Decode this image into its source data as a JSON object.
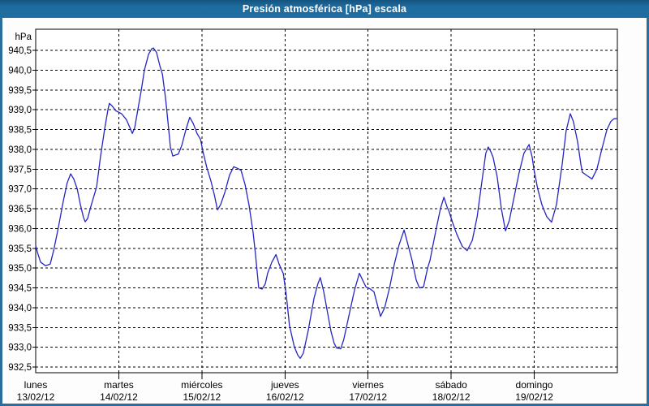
{
  "window": {
    "title": "Presión atmosférica [hPa] escala"
  },
  "colors": {
    "title_bar": "#1e6b9f",
    "title_text": "#ffffff",
    "frame_border": "#2b6d9d",
    "plot_background": "#ffffff",
    "grid": "#000000",
    "axis": "#000000",
    "line": "#2525c4"
  },
  "chart_data": {
    "type": "line",
    "title": "Presión atmosférica [hPa] escala",
    "y_unit_label": "hPa",
    "decimal_separator": ",",
    "grid": "dashed",
    "legend": "none",
    "ylim": [
      932.36,
      941.03
    ],
    "y_ticks": [
      940.5,
      940.0,
      939.5,
      939.0,
      938.5,
      938.0,
      937.5,
      937.0,
      936.5,
      936.0,
      935.5,
      935.0,
      934.5,
      934.0,
      933.5,
      933.0,
      932.5
    ],
    "xlim_hours": [
      0,
      168
    ],
    "hours_per_day": 24,
    "x_day_labels": [
      {
        "weekday": "lunes",
        "date": "13/02/12"
      },
      {
        "weekday": "martes",
        "date": "14/02/12"
      },
      {
        "weekday": "miércoles",
        "date": "15/02/12"
      },
      {
        "weekday": "jueves",
        "date": "16/02/12"
      },
      {
        "weekday": "viernes",
        "date": "17/02/12"
      },
      {
        "weekday": "sábado",
        "date": "18/02/12"
      },
      {
        "weekday": "domingo",
        "date": "19/02/12"
      }
    ],
    "series": [
      {
        "name": "presión atmosférica",
        "color": "#2525c4",
        "points": [
          [
            0,
            935.57
          ],
          [
            0.5,
            935.4
          ],
          [
            1.4,
            935.15
          ],
          [
            2.8,
            935.06
          ],
          [
            4.2,
            935.1
          ],
          [
            5.2,
            935.45
          ],
          [
            6.6,
            936.05
          ],
          [
            8.0,
            936.7
          ],
          [
            9.1,
            937.15
          ],
          [
            10.1,
            937.38
          ],
          [
            11.0,
            937.25
          ],
          [
            12.0,
            937.0
          ],
          [
            12.9,
            936.6
          ],
          [
            13.8,
            936.28
          ],
          [
            14.3,
            936.17
          ],
          [
            15.0,
            936.25
          ],
          [
            15.9,
            936.55
          ],
          [
            17.6,
            937.05
          ],
          [
            18.7,
            937.8
          ],
          [
            19.9,
            938.5
          ],
          [
            20.9,
            939.02
          ],
          [
            21.3,
            939.16
          ],
          [
            22.0,
            939.1
          ],
          [
            23.2,
            938.97
          ],
          [
            24.8,
            938.9
          ],
          [
            26.2,
            938.75
          ],
          [
            27.2,
            938.55
          ],
          [
            27.9,
            938.4
          ],
          [
            28.6,
            938.55
          ],
          [
            29.5,
            939.0
          ],
          [
            30.5,
            939.5
          ],
          [
            31.4,
            940.0
          ],
          [
            32.6,
            940.4
          ],
          [
            33.5,
            940.54
          ],
          [
            34.0,
            940.56
          ],
          [
            34.9,
            940.45
          ],
          [
            35.9,
            940.1
          ],
          [
            36.6,
            939.9
          ],
          [
            37.5,
            939.3
          ],
          [
            38.2,
            938.7
          ],
          [
            38.9,
            938.06
          ],
          [
            39.6,
            937.83
          ],
          [
            40.5,
            937.86
          ],
          [
            41.2,
            937.88
          ],
          [
            42.2,
            938.1
          ],
          [
            43.4,
            938.5
          ],
          [
            44.5,
            938.81
          ],
          [
            45.5,
            938.65
          ],
          [
            46.6,
            938.4
          ],
          [
            47.6,
            938.25
          ],
          [
            48.3,
            937.95
          ],
          [
            49.4,
            937.55
          ],
          [
            50.6,
            937.2
          ],
          [
            51.6,
            936.85
          ],
          [
            52.5,
            936.47
          ],
          [
            53.4,
            936.6
          ],
          [
            54.6,
            936.9
          ],
          [
            56.0,
            937.35
          ],
          [
            57.2,
            937.56
          ],
          [
            58.3,
            937.52
          ],
          [
            59.3,
            937.47
          ],
          [
            60.5,
            937.1
          ],
          [
            61.6,
            936.6
          ],
          [
            62.8,
            935.9
          ],
          [
            63.5,
            935.33
          ],
          [
            64.4,
            934.5
          ],
          [
            65.4,
            934.47
          ],
          [
            66.3,
            934.6
          ],
          [
            67.0,
            934.87
          ],
          [
            68.2,
            935.15
          ],
          [
            69.4,
            935.34
          ],
          [
            70.3,
            935.1
          ],
          [
            71.5,
            934.86
          ],
          [
            72.4,
            934.3
          ],
          [
            73.3,
            933.55
          ],
          [
            74.7,
            933.01
          ],
          [
            75.7,
            932.8
          ],
          [
            76.4,
            932.72
          ],
          [
            77.3,
            932.85
          ],
          [
            78.7,
            933.42
          ],
          [
            80.4,
            934.24
          ],
          [
            81.5,
            934.6
          ],
          [
            82.2,
            934.76
          ],
          [
            83.2,
            934.4
          ],
          [
            84.1,
            933.97
          ],
          [
            85.3,
            933.4
          ],
          [
            86.2,
            933.1
          ],
          [
            86.9,
            932.98
          ],
          [
            88.1,
            932.96
          ],
          [
            89.0,
            933.2
          ],
          [
            90.4,
            933.77
          ],
          [
            92.1,
            934.45
          ],
          [
            93.5,
            934.87
          ],
          [
            94.4,
            934.7
          ],
          [
            95.4,
            934.52
          ],
          [
            96.5,
            934.48
          ],
          [
            97.7,
            934.4
          ],
          [
            98.9,
            934.0
          ],
          [
            99.6,
            933.78
          ],
          [
            100.8,
            934.0
          ],
          [
            102.2,
            934.5
          ],
          [
            103.6,
            935.1
          ],
          [
            105.0,
            935.6
          ],
          [
            106.4,
            935.96
          ],
          [
            107.5,
            935.6
          ],
          [
            108.7,
            935.2
          ],
          [
            109.9,
            934.7
          ],
          [
            110.8,
            934.5
          ],
          [
            112.0,
            934.52
          ],
          [
            113.2,
            935.0
          ],
          [
            113.9,
            935.2
          ],
          [
            114.8,
            935.6
          ],
          [
            115.7,
            936.0
          ],
          [
            116.9,
            936.5
          ],
          [
            117.9,
            936.79
          ],
          [
            118.8,
            936.55
          ],
          [
            119.3,
            936.45
          ],
          [
            120.4,
            936.15
          ],
          [
            121.6,
            935.86
          ],
          [
            123.2,
            935.55
          ],
          [
            124.6,
            935.44
          ],
          [
            126.1,
            935.7
          ],
          [
            127.5,
            936.3
          ],
          [
            128.9,
            937.2
          ],
          [
            130.0,
            937.9
          ],
          [
            130.7,
            938.06
          ],
          [
            131.4,
            937.95
          ],
          [
            132.1,
            937.8
          ],
          [
            133.3,
            937.3
          ],
          [
            134.5,
            936.5
          ],
          [
            135.7,
            935.94
          ],
          [
            136.8,
            936.2
          ],
          [
            138.2,
            936.8
          ],
          [
            139.6,
            937.4
          ],
          [
            141.0,
            937.9
          ],
          [
            142.5,
            938.12
          ],
          [
            143.4,
            937.8
          ],
          [
            143.9,
            937.5
          ],
          [
            145.0,
            937.0
          ],
          [
            146.2,
            936.6
          ],
          [
            147.6,
            936.3
          ],
          [
            149.0,
            936.16
          ],
          [
            150.4,
            936.6
          ],
          [
            152.1,
            937.64
          ],
          [
            153.2,
            938.46
          ],
          [
            154.4,
            938.9
          ],
          [
            155.3,
            938.7
          ],
          [
            156.5,
            938.2
          ],
          [
            157.5,
            937.6
          ],
          [
            157.9,
            937.42
          ],
          [
            159.3,
            937.33
          ],
          [
            160.7,
            937.25
          ],
          [
            162.1,
            937.5
          ],
          [
            163.5,
            938.0
          ],
          [
            165.0,
            938.5
          ],
          [
            166.1,
            938.7
          ],
          [
            167.0,
            938.77
          ],
          [
            168.0,
            938.78
          ]
        ]
      }
    ]
  }
}
